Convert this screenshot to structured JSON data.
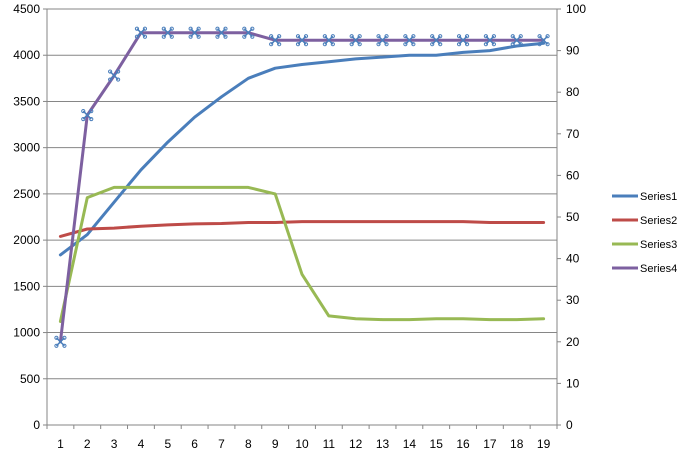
{
  "chart_data": {
    "type": "line",
    "title": "",
    "xlabel": "",
    "ylabel": "",
    "categories": [
      "1",
      "2",
      "3",
      "4",
      "5",
      "6",
      "7",
      "8",
      "9",
      "10",
      "11",
      "12",
      "13",
      "14",
      "15",
      "16",
      "17",
      "18",
      "19"
    ],
    "y_left": {
      "range": [
        0,
        4500
      ],
      "ticks": [
        0,
        500,
        1000,
        1500,
        2000,
        2500,
        3000,
        3500,
        4000,
        4500
      ]
    },
    "y_right": {
      "range": [
        0,
        100
      ],
      "ticks": [
        0,
        10,
        20,
        30,
        40,
        50,
        60,
        70,
        80,
        90,
        100
      ]
    },
    "grid": "horizontal",
    "legend_position": "right",
    "series": [
      {
        "name": "Series1",
        "axis": "left",
        "color": "#4A7EBB",
        "marker": "none",
        "values": [
          1840,
          2060,
          2410,
          2760,
          3060,
          3330,
          3550,
          3750,
          3860,
          3900,
          3930,
          3960,
          3980,
          4000,
          4000,
          4030,
          4050,
          4100,
          4130
        ]
      },
      {
        "name": "Series2",
        "axis": "left",
        "color": "#BE4B48",
        "marker": "none",
        "values": [
          2040,
          2120,
          2130,
          2150,
          2165,
          2175,
          2180,
          2190,
          2190,
          2200,
          2200,
          2200,
          2200,
          2200,
          2200,
          2200,
          2190,
          2190,
          2190
        ]
      },
      {
        "name": "Series3",
        "axis": "left",
        "color": "#98B954",
        "marker": "none",
        "values": [
          1120,
          2460,
          2570,
          2570,
          2570,
          2570,
          2570,
          2570,
          2500,
          1630,
          1180,
          1150,
          1140,
          1140,
          1150,
          1150,
          1140,
          1140,
          1150
        ]
      },
      {
        "name": "Series4",
        "axis": "right",
        "color": "#7D60A0",
        "marker": "cross",
        "values": [
          20,
          74.5,
          84,
          94.3,
          94.3,
          94.3,
          94.3,
          94.3,
          92.5,
          92.5,
          92.5,
          92.5,
          92.5,
          92.5,
          92.5,
          92.5,
          92.5,
          92.5,
          92.5
        ]
      }
    ]
  }
}
